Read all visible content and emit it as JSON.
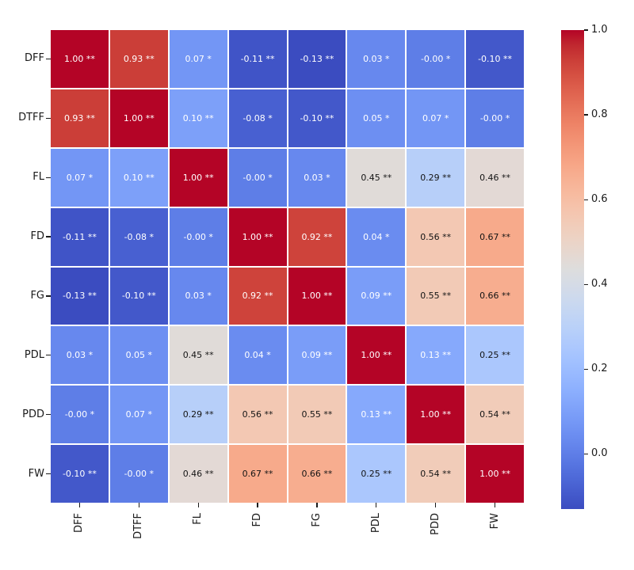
{
  "chart_data": {
    "type": "heatmap",
    "title": "",
    "categories": [
      "DFF",
      "DTFF",
      "FL",
      "FD",
      "FG",
      "PDL",
      "PDD",
      "FW"
    ],
    "annotations": [
      [
        "1.00 **",
        "0.93 **",
        "0.07 *",
        "-0.11 **",
        "-0.13 **",
        "0.03 *",
        "-0.00 *",
        "-0.10 **"
      ],
      [
        "0.93 **",
        "1.00 **",
        "0.10 **",
        "-0.08 *",
        "-0.10 **",
        "0.05 *",
        "0.07 *",
        "-0.00 *"
      ],
      [
        "0.07 *",
        "0.10 **",
        "1.00 **",
        "-0.00 *",
        "0.03 *",
        "0.45 **",
        "0.29 **",
        "0.46 **"
      ],
      [
        "-0.11 **",
        "-0.08 *",
        "-0.00 *",
        "1.00 **",
        "0.92 **",
        "0.04 *",
        "0.56 **",
        "0.67 **"
      ],
      [
        "-0.13 **",
        "-0.10 **",
        "0.03 *",
        "0.92 **",
        "1.00 **",
        "0.09 **",
        "0.55 **",
        "0.66 **"
      ],
      [
        "0.03 *",
        "0.05 *",
        "0.45 **",
        "0.04 *",
        "0.09 **",
        "1.00 **",
        "0.13 **",
        "0.25 **"
      ],
      [
        "-0.00 *",
        "0.07 *",
        "0.29 **",
        "0.56 **",
        "0.55 **",
        "0.13 **",
        "1.00 **",
        "0.54 **"
      ],
      [
        "-0.10 **",
        "-0.00 *",
        "0.46 **",
        "0.67 **",
        "0.66 **",
        "0.25 **",
        "0.54 **",
        "1.00 **"
      ]
    ],
    "values": [
      [
        1.0,
        0.93,
        0.07,
        -0.11,
        -0.13,
        0.03,
        0.0,
        -0.1
      ],
      [
        0.93,
        1.0,
        0.1,
        -0.08,
        -0.1,
        0.05,
        0.07,
        0.0
      ],
      [
        0.07,
        0.1,
        1.0,
        0.0,
        0.03,
        0.45,
        0.29,
        0.46
      ],
      [
        -0.11,
        -0.08,
        0.0,
        1.0,
        0.92,
        0.04,
        0.56,
        0.67
      ],
      [
        -0.13,
        -0.1,
        0.03,
        0.92,
        1.0,
        0.09,
        0.55,
        0.66
      ],
      [
        0.03,
        0.05,
        0.45,
        0.04,
        0.09,
        1.0,
        0.13,
        0.25
      ],
      [
        0.0,
        0.07,
        0.29,
        0.56,
        0.55,
        0.13,
        1.0,
        0.54
      ],
      [
        -0.1,
        0.0,
        0.46,
        0.67,
        0.66,
        0.25,
        0.54,
        1.0
      ]
    ],
    "vmin": -0.13,
    "vmax": 1.0,
    "gridlines": "white",
    "colormap": {
      "name": "coolwarm",
      "stops": [
        [
          59,
          76,
          192
        ],
        [
          68,
          90,
          204
        ],
        [
          77,
          104,
          215
        ],
        [
          87,
          117,
          225
        ],
        [
          98,
          130,
          234
        ],
        [
          108,
          142,
          241
        ],
        [
          119,
          154,
          247
        ],
        [
          130,
          165,
          251
        ],
        [
          141,
          176,
          254
        ],
        [
          152,
          185,
          255
        ],
        [
          163,
          194,
          255
        ],
        [
          174,
          201,
          253
        ],
        [
          184,
          208,
          249
        ],
        [
          194,
          213,
          244
        ],
        [
          204,
          217,
          238
        ],
        [
          213,
          219,
          230
        ],
        [
          221,
          221,
          221
        ],
        [
          229,
          216,
          209
        ],
        [
          236,
          211,
          197
        ],
        [
          241,
          204,
          185
        ],
        [
          245,
          196,
          173
        ],
        [
          247,
          187,
          160
        ],
        [
          247,
          177,
          148
        ],
        [
          247,
          166,
          135
        ],
        [
          244,
          154,
          123
        ],
        [
          241,
          141,
          111
        ],
        [
          236,
          127,
          99
        ],
        [
          229,
          112,
          88
        ],
        [
          222,
          96,
          77
        ],
        [
          213,
          80,
          66
        ],
        [
          203,
          62,
          56
        ],
        [
          192,
          40,
          47
        ],
        [
          180,
          4,
          38
        ]
      ]
    },
    "annotation_text_colors": {
      "on_dark": "#ffffff",
      "on_light": "#151515"
    },
    "colorbar": {
      "position": "right",
      "tick_values": [
        1.0,
        0.8,
        0.6,
        0.4,
        0.2,
        0.0
      ],
      "tick_labels": [
        "1.0",
        "0.8",
        "0.6",
        "0.4",
        "0.2",
        "0.0"
      ]
    }
  }
}
